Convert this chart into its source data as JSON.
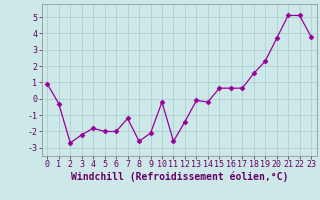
{
  "x": [
    0,
    1,
    2,
    3,
    4,
    5,
    6,
    7,
    8,
    9,
    10,
    11,
    12,
    13,
    14,
    15,
    16,
    17,
    18,
    19,
    20,
    21,
    22,
    23
  ],
  "y": [
    0.9,
    -0.3,
    -2.7,
    -2.2,
    -1.8,
    -2.0,
    -2.0,
    -1.2,
    -2.6,
    -2.1,
    -0.2,
    -2.6,
    -1.4,
    -0.1,
    -0.2,
    0.65,
    0.65,
    0.65,
    1.55,
    2.3,
    3.7,
    5.1,
    5.1,
    3.8
  ],
  "line_color": "#990099",
  "marker": "D",
  "marker_size": 2.5,
  "bg_color": "#cce8e8",
  "grid_color": "#b0d0d0",
  "xlabel": "Windchill (Refroidissement éolien,°C)",
  "xlabel_fontsize": 7.0,
  "tick_fontsize": 6.0,
  "ylim": [
    -3.5,
    5.8
  ],
  "xlim": [
    -0.5,
    23.5
  ],
  "yticks": [
    -3,
    -2,
    -1,
    0,
    1,
    2,
    3,
    4,
    5
  ],
  "xticks": [
    0,
    1,
    2,
    3,
    4,
    5,
    6,
    7,
    8,
    9,
    10,
    11,
    12,
    13,
    14,
    15,
    16,
    17,
    18,
    19,
    20,
    21,
    22,
    23
  ]
}
